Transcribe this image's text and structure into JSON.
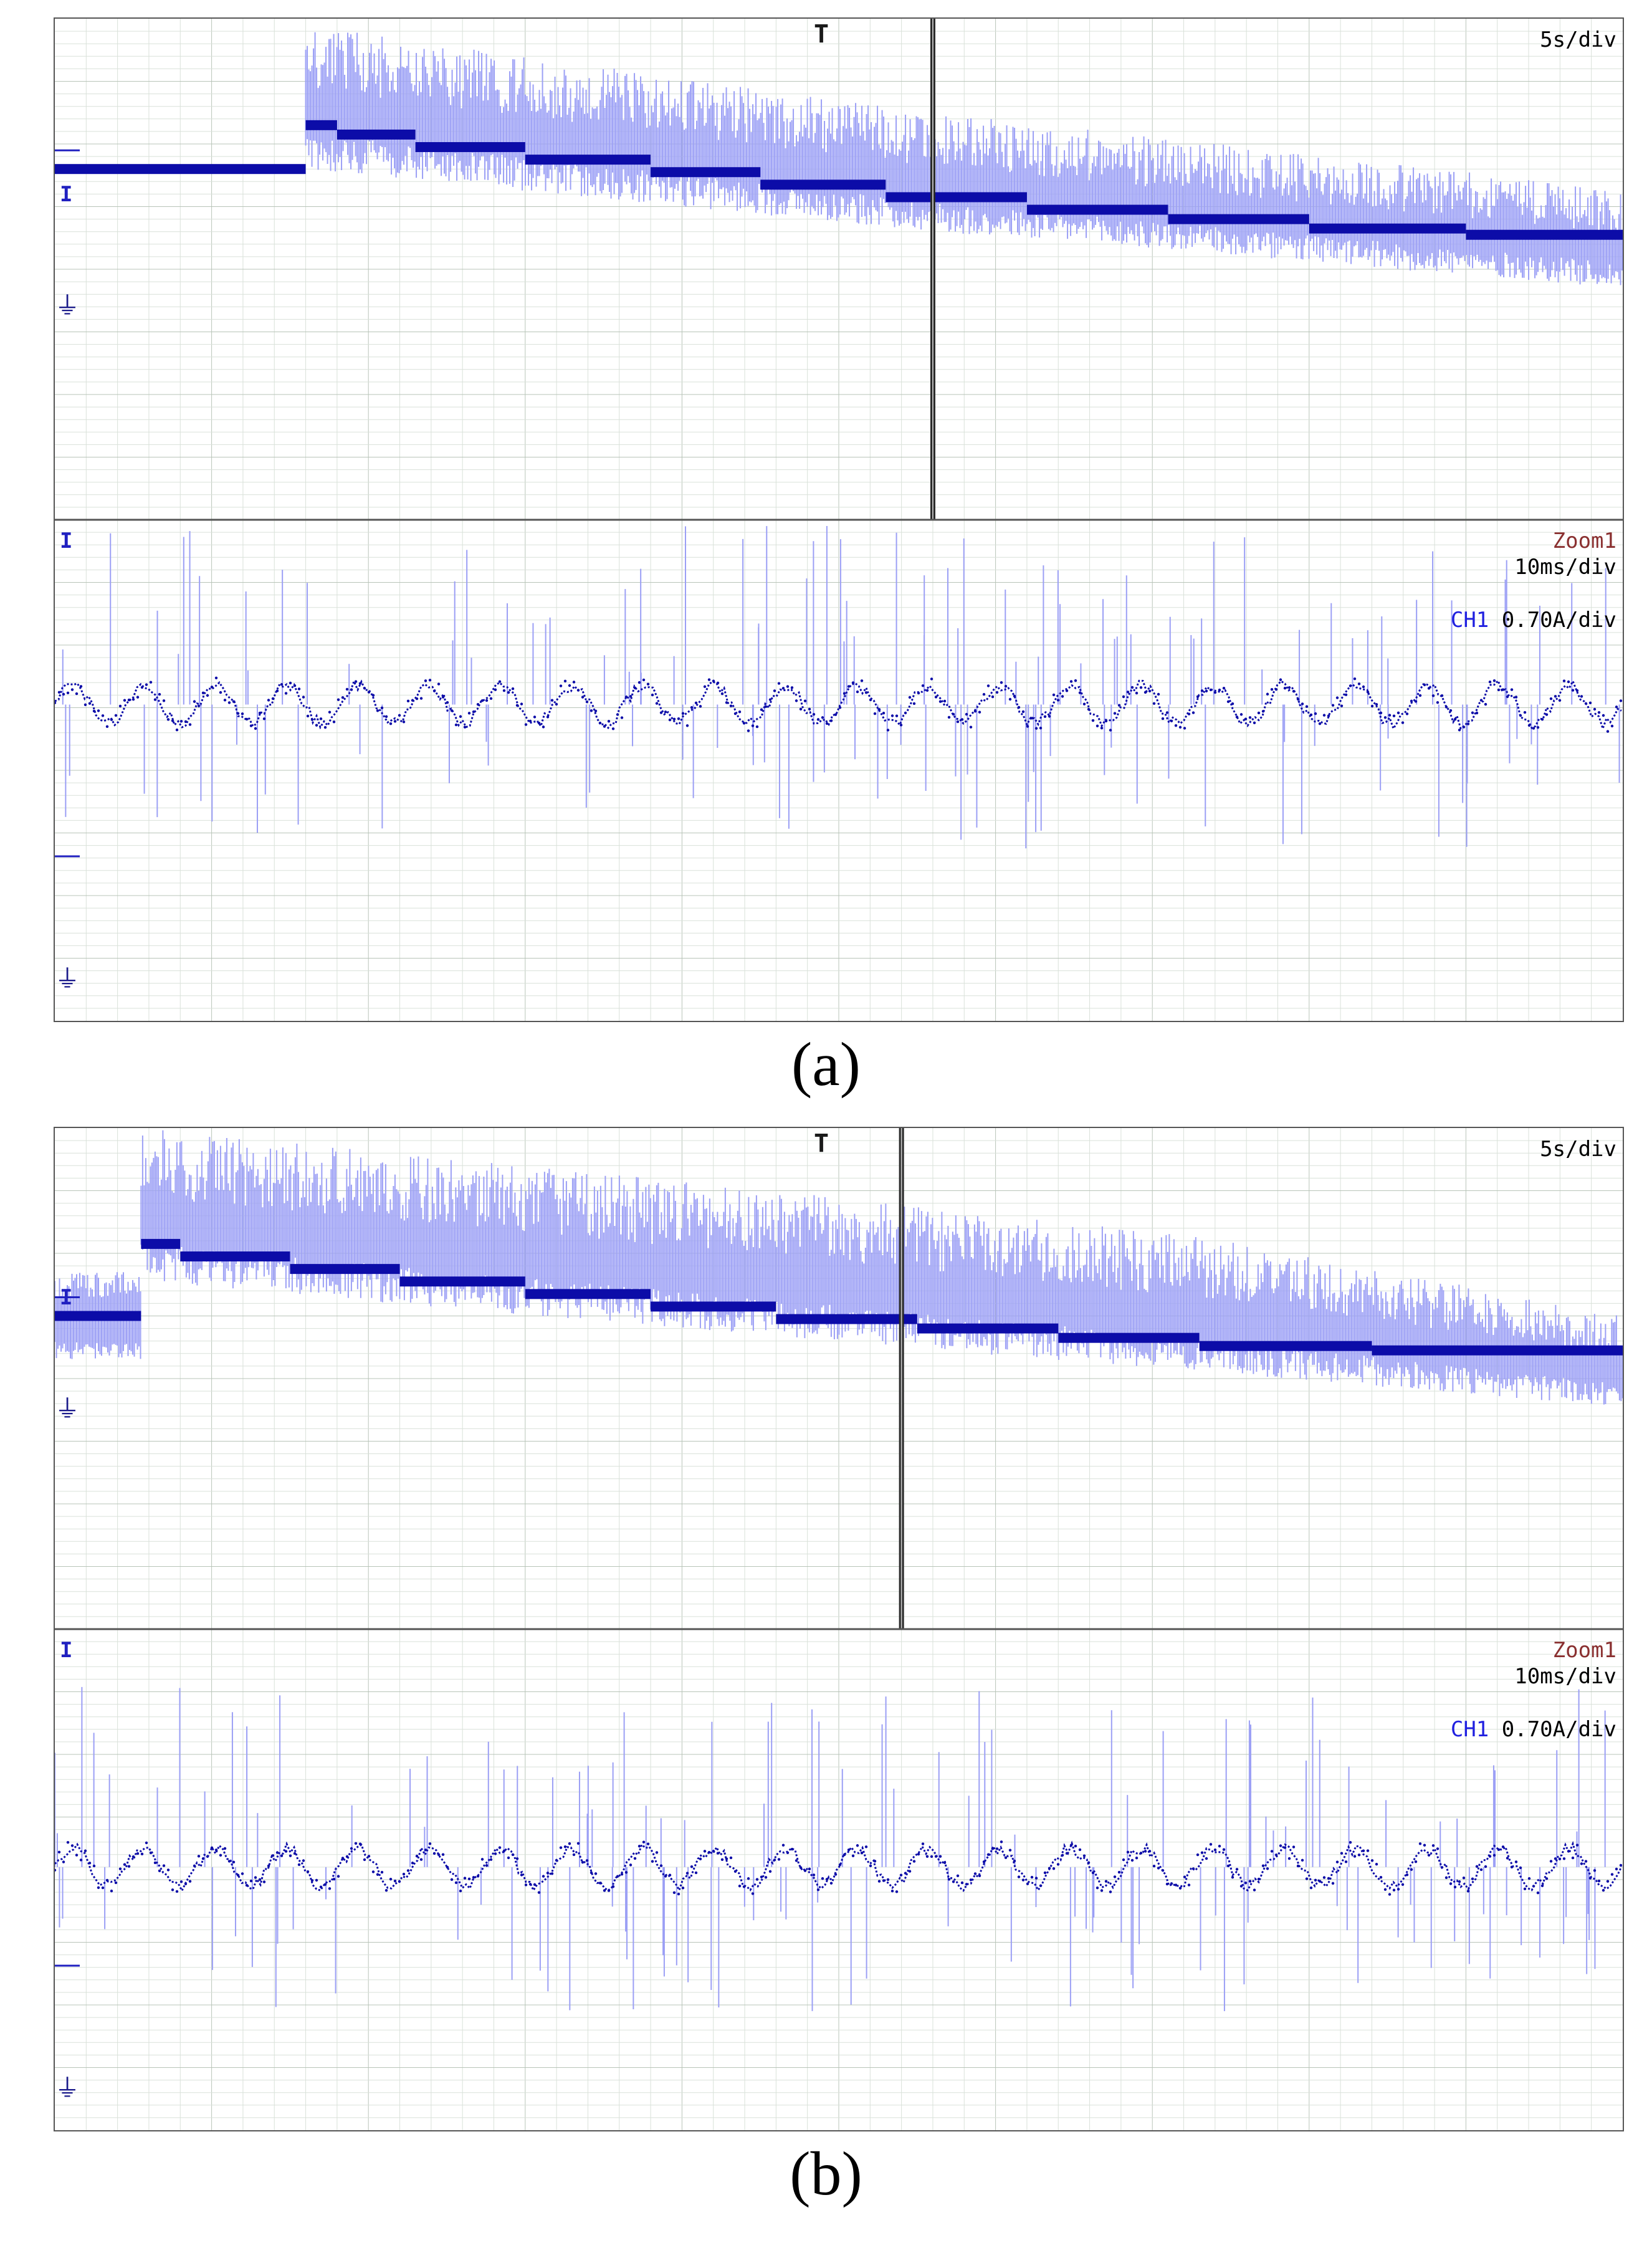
{
  "colors": {
    "envelope": "#9b9ff5",
    "trace": "#0c0ca8",
    "grid": "#d9e1d9",
    "major": "#b8c4b8",
    "cursor": "#2a2a2a",
    "frame": "#555555"
  },
  "panels": [
    {
      "caption": "(a)",
      "time_div": "5s/div",
      "zoom_label": "Zoom1",
      "zoom_time_div": "10ms/div",
      "channel_name": "CH1",
      "channel_scale": "0.70A/div",
      "channel_marker_glyph": "I",
      "ground_icon": "ground-reference-icon",
      "trigger_icon": "trigger-marker-icon",
      "trigger_glyph": "T",
      "ground_glyph": "⏚"
    },
    {
      "caption": "(b)",
      "time_div": "5s/div",
      "zoom_label": "Zoom1",
      "zoom_time_div": "10ms/div",
      "channel_name": "CH1",
      "channel_scale": "0.70A/div",
      "channel_marker_glyph": "I",
      "ground_icon": "ground-reference-icon",
      "trigger_icon": "trigger-marker-icon",
      "trigger_glyph": "T",
      "ground_glyph": "⏚"
    }
  ],
  "chart_data": [
    {
      "type": "line",
      "panel": "(a) main",
      "x_range_div": [
        0,
        10
      ],
      "y_range_div": [
        0,
        8
      ],
      "grid": true,
      "step_time_div": 1.6,
      "zoom_cursor_div": 5.6,
      "trace_steps_div": [
        {
          "x_start": 0.0,
          "x_end": 1.6,
          "y": 5.6
        },
        {
          "x_start": 1.6,
          "x_end": 1.8,
          "y": 6.3
        },
        {
          "x_start": 1.8,
          "x_end": 2.3,
          "y": 6.15
        },
        {
          "x_start": 2.3,
          "x_end": 3.0,
          "y": 5.95
        },
        {
          "x_start": 3.0,
          "x_end": 3.8,
          "y": 5.75
        },
        {
          "x_start": 3.8,
          "x_end": 4.5,
          "y": 5.55
        },
        {
          "x_start": 4.5,
          "x_end": 5.3,
          "y": 5.35
        },
        {
          "x_start": 5.3,
          "x_end": 6.2,
          "y": 5.15
        },
        {
          "x_start": 6.2,
          "x_end": 7.1,
          "y": 4.95
        },
        {
          "x_start": 7.1,
          "x_end": 8.0,
          "y": 4.8
        },
        {
          "x_start": 8.0,
          "x_end": 9.0,
          "y": 4.65
        },
        {
          "x_start": 9.0,
          "x_end": 10.0,
          "y": 4.55
        }
      ],
      "envelope_upper_div": [
        {
          "x": 1.6,
          "y": 7.9
        },
        {
          "x": 5.6,
          "y": 6.5
        },
        {
          "x": 10.0,
          "y": 5.3
        }
      ],
      "envelope_lower_div": [
        {
          "x": 1.6,
          "y": 5.6
        },
        {
          "x": 5.6,
          "y": 4.6
        },
        {
          "x": 10.0,
          "y": 3.7
        }
      ]
    },
    {
      "type": "line",
      "panel": "(a) zoom",
      "x_range_div": [
        0,
        10
      ],
      "y_range_div": [
        0,
        8
      ],
      "grid": true,
      "sine_cycles": 22,
      "center_div": 5.05,
      "amplitude_div": 0.3,
      "spikes": true
    },
    {
      "type": "line",
      "panel": "(b) main",
      "x_range_div": [
        0,
        10
      ],
      "y_range_div": [
        0,
        8
      ],
      "grid": true,
      "zoom_cursor_div": 5.4,
      "trace_steps_div": [
        {
          "x_start": 0.0,
          "x_end": 0.55,
          "y": 5.0
        },
        {
          "x_start": 0.55,
          "x_end": 0.8,
          "y": 6.15
        },
        {
          "x_start": 0.8,
          "x_end": 1.5,
          "y": 5.95
        },
        {
          "x_start": 1.5,
          "x_end": 2.2,
          "y": 5.75
        },
        {
          "x_start": 2.2,
          "x_end": 3.0,
          "y": 5.55
        },
        {
          "x_start": 3.0,
          "x_end": 3.8,
          "y": 5.35
        },
        {
          "x_start": 3.8,
          "x_end": 4.6,
          "y": 5.15
        },
        {
          "x_start": 4.6,
          "x_end": 5.5,
          "y": 4.95
        },
        {
          "x_start": 5.5,
          "x_end": 6.4,
          "y": 4.8
        },
        {
          "x_start": 6.4,
          "x_end": 7.3,
          "y": 4.65
        },
        {
          "x_start": 7.3,
          "x_end": 8.4,
          "y": 4.52
        },
        {
          "x_start": 8.4,
          "x_end": 10.0,
          "y": 4.45
        }
      ],
      "envelope_upper_div": [
        {
          "x": 0.55,
          "y": 8.0
        },
        {
          "x": 5.4,
          "y": 6.8
        },
        {
          "x": 7.5,
          "y": 6.2
        },
        {
          "x": 10.0,
          "y": 5.0
        }
      ],
      "envelope_lower_div": [
        {
          "x": 0.55,
          "y": 5.55
        },
        {
          "x": 5.4,
          "y": 4.5
        },
        {
          "x": 10.0,
          "y": 3.55
        }
      ]
    },
    {
      "type": "line",
      "panel": "(b) zoom",
      "x_range_div": [
        0,
        10
      ],
      "y_range_div": [
        0,
        8
      ],
      "grid": true,
      "sine_cycles": 22,
      "center_div": 4.2,
      "amplitude_div": 0.3,
      "spikes": true
    }
  ]
}
